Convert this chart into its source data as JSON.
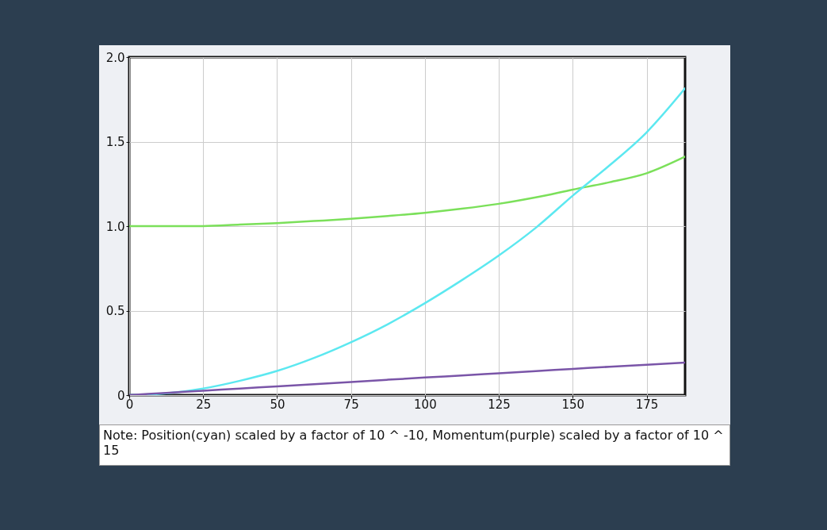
{
  "chart_data": {
    "type": "line",
    "x": [
      0,
      12.5,
      25,
      37.5,
      50,
      62.5,
      75,
      87.5,
      100,
      112.5,
      125,
      137.5,
      150,
      162.5,
      175,
      188
    ],
    "series": [
      {
        "color": "#7be05a",
        "values": [
          1.0,
          1.0,
          1.0,
          1.009,
          1.018,
          1.03,
          1.043,
          1.06,
          1.079,
          1.103,
          1.132,
          1.17,
          1.216,
          1.26,
          1.313,
          1.411
        ]
      },
      {
        "color": "#5ce8f0",
        "values": [
          0,
          0.01,
          0.039,
          0.085,
          0.143,
          0.22,
          0.313,
          0.42,
          0.544,
          0.68,
          0.826,
          0.99,
          1.18,
          1.36,
          1.555,
          1.815
        ]
      },
      {
        "color": "#7a55a8",
        "values": [
          0,
          0.013,
          0.026,
          0.039,
          0.052,
          0.065,
          0.078,
          0.091,
          0.104,
          0.116,
          0.129,
          0.142,
          0.155,
          0.168,
          0.18,
          0.193
        ]
      }
    ],
    "xlim": [
      0,
      188
    ],
    "xticks": [
      0,
      25,
      50,
      75,
      100,
      125,
      150,
      175
    ],
    "ylim": [
      0,
      2.0
    ],
    "yticks": [
      0,
      0.5,
      {
        "value": 1.0,
        "label": "1.0"
      },
      1.5,
      {
        "value": 2.0,
        "label": "2.0"
      }
    ],
    "grid": true,
    "marker": "none",
    "line_style": "solid",
    "annotations": [
      "Note: Position(cyan) scaled by a factor of 10 ^ -10, Momentum(purple) scaled by a factor of 10 ^ 15"
    ]
  }
}
